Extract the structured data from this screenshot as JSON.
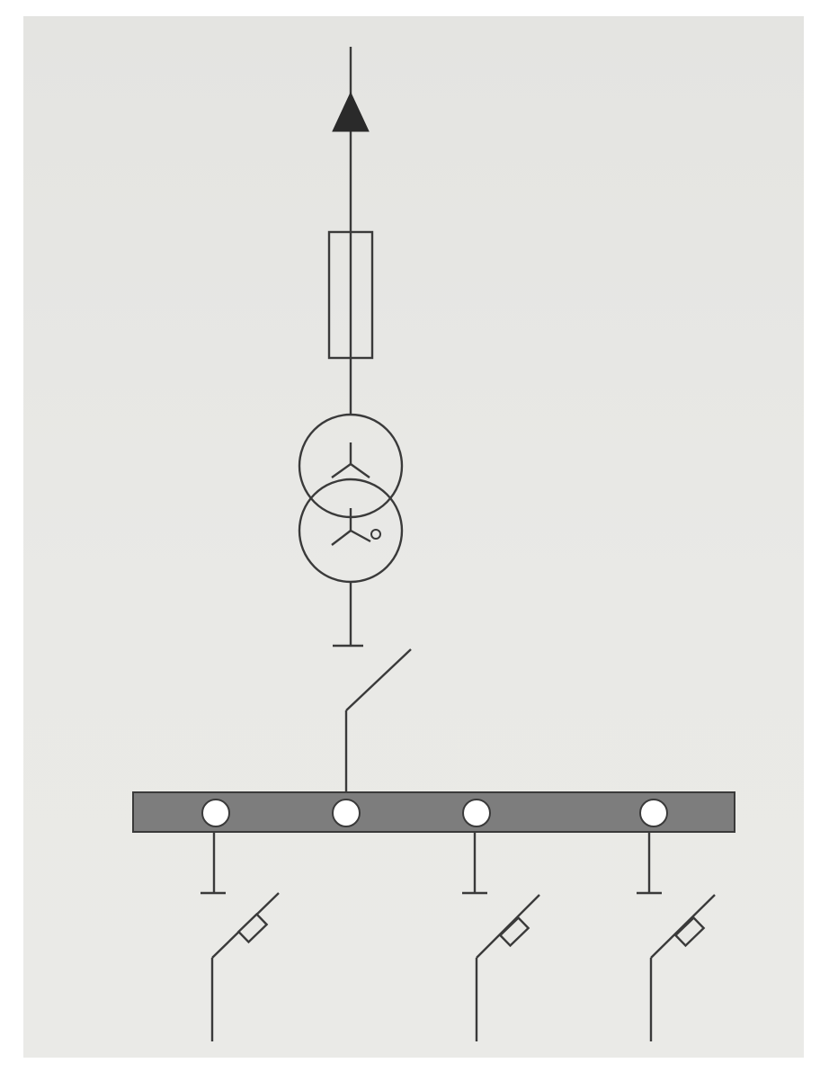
{
  "diagram": {
    "kind": "single-line electrical schematic",
    "colors": {
      "paper": "#e7e7e4",
      "line": "#3a3a3a",
      "busbar_fill": "#7d7d7d",
      "terminal_fill": "#ffffff"
    },
    "symbols": [
      "supply-arrow",
      "fuse",
      "transformer-star-star-neutral",
      "earth",
      "disconnector-switch",
      "busbar",
      "outgoing-feeder-switch"
    ],
    "busbar_terminals": 4,
    "outgoing_feeders": 3
  }
}
